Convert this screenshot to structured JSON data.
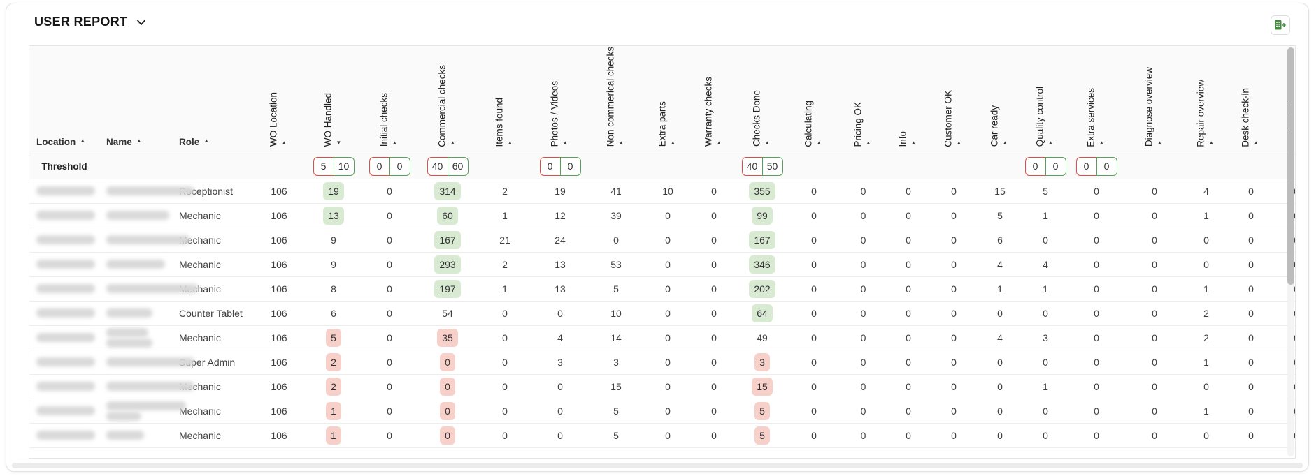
{
  "title": "USER REPORT",
  "export_button": {
    "icon": "excel-export-icon"
  },
  "colors": {
    "badge_green": "#d9ead3",
    "badge_red": "#f8d0ca",
    "threshold_red_border": "#dd5145",
    "threshold_green_border": "#55a157",
    "export_icon_green": "#44893f"
  },
  "table": {
    "threshold_label": "Threshold",
    "text_columns": [
      {
        "label": "Location",
        "sort": "asc"
      },
      {
        "label": "Name",
        "sort": "asc"
      },
      {
        "label": "Role",
        "sort": "asc"
      }
    ],
    "value_columns": [
      {
        "label": "WO Location",
        "sort": "asc",
        "threshold": null
      },
      {
        "label": "WO Handled",
        "sort": "desc",
        "threshold": {
          "red": "5",
          "green": "10"
        }
      },
      {
        "label": "Initial checks",
        "sort": "asc",
        "threshold": {
          "red": "0",
          "green": "0"
        }
      },
      {
        "label": "Commercial checks",
        "sort": "asc",
        "threshold": {
          "red": "40",
          "green": "60"
        }
      },
      {
        "label": "Items found",
        "sort": "asc",
        "threshold": null
      },
      {
        "label": "Photos / Videos",
        "sort": "asc",
        "threshold": {
          "red": "0",
          "green": "0"
        }
      },
      {
        "label": "Non commerical checks",
        "sort": "asc",
        "threshold": null
      },
      {
        "label": "Extra parts",
        "sort": "asc",
        "threshold": null
      },
      {
        "label": "Warranty checks",
        "sort": "asc",
        "threshold": null
      },
      {
        "label": "Checks Done",
        "sort": "asc",
        "threshold": {
          "red": "40",
          "green": "50"
        }
      },
      {
        "label": "Calculating",
        "sort": "asc",
        "threshold": null
      },
      {
        "label": "Pricing OK",
        "sort": "asc",
        "threshold": null
      },
      {
        "label": "Info",
        "sort": "asc",
        "threshold": null
      },
      {
        "label": "Customer OK",
        "sort": "asc",
        "threshold": null
      },
      {
        "label": "Car ready",
        "sort": "asc",
        "threshold": null
      },
      {
        "label": "Quality control",
        "sort": "asc",
        "threshold": {
          "red": "0",
          "green": "0"
        }
      },
      {
        "label": "Extra services",
        "sort": "asc",
        "threshold": {
          "red": "0",
          "green": "0"
        }
      },
      {
        "label": "Diagnose overview",
        "sort": "asc",
        "threshold": null
      },
      {
        "label": "Repair overview",
        "sort": "asc",
        "threshold": null
      },
      {
        "label": "Desk check-in",
        "sort": "asc",
        "threshold": null
      },
      {
        "label": "Desk check-out",
        "sort": "asc",
        "threshold": null
      }
    ],
    "rows": [
      {
        "location": "",
        "name": "",
        "role": "Receptionist",
        "values": [
          [
            "106"
          ],
          [
            "19",
            "g"
          ],
          [
            "0"
          ],
          [
            "314",
            "g"
          ],
          [
            "2"
          ],
          [
            "19"
          ],
          [
            "41"
          ],
          [
            "10"
          ],
          [
            "0"
          ],
          [
            "355",
            "g"
          ],
          [
            "0"
          ],
          [
            "0"
          ],
          [
            "0"
          ],
          [
            "0"
          ],
          [
            "15"
          ],
          [
            "5"
          ],
          [
            "0"
          ],
          [
            "0"
          ],
          [
            "4"
          ],
          [
            "0"
          ],
          [
            "0"
          ]
        ]
      },
      {
        "location": "",
        "name": "",
        "role": "Mechanic",
        "values": [
          [
            "106"
          ],
          [
            "13",
            "g"
          ],
          [
            "0"
          ],
          [
            "60",
            "g"
          ],
          [
            "1"
          ],
          [
            "12"
          ],
          [
            "39"
          ],
          [
            "0"
          ],
          [
            "0"
          ],
          [
            "99",
            "g"
          ],
          [
            "0"
          ],
          [
            "0"
          ],
          [
            "0"
          ],
          [
            "0"
          ],
          [
            "5"
          ],
          [
            "1"
          ],
          [
            "0"
          ],
          [
            "0"
          ],
          [
            "1"
          ],
          [
            "0"
          ],
          [
            "0"
          ]
        ]
      },
      {
        "location": "",
        "name": "",
        "role": "Mechanic",
        "values": [
          [
            "106"
          ],
          [
            "9"
          ],
          [
            "0"
          ],
          [
            "167",
            "g"
          ],
          [
            "21"
          ],
          [
            "24"
          ],
          [
            "0"
          ],
          [
            "0"
          ],
          [
            "0"
          ],
          [
            "167",
            "g"
          ],
          [
            "0"
          ],
          [
            "0"
          ],
          [
            "0"
          ],
          [
            "0"
          ],
          [
            "6"
          ],
          [
            "0"
          ],
          [
            "0"
          ],
          [
            "0"
          ],
          [
            "0"
          ],
          [
            "0"
          ],
          [
            "0"
          ]
        ]
      },
      {
        "location": "",
        "name": "",
        "role": "Mechanic",
        "values": [
          [
            "106"
          ],
          [
            "9"
          ],
          [
            "0"
          ],
          [
            "293",
            "g"
          ],
          [
            "2"
          ],
          [
            "13"
          ],
          [
            "53"
          ],
          [
            "0"
          ],
          [
            "0"
          ],
          [
            "346",
            "g"
          ],
          [
            "0"
          ],
          [
            "0"
          ],
          [
            "0"
          ],
          [
            "0"
          ],
          [
            "4"
          ],
          [
            "4"
          ],
          [
            "0"
          ],
          [
            "0"
          ],
          [
            "0"
          ],
          [
            "0"
          ],
          [
            "0"
          ]
        ]
      },
      {
        "location": "",
        "name": "",
        "role": "Mechanic",
        "values": [
          [
            "106"
          ],
          [
            "8"
          ],
          [
            "0"
          ],
          [
            "197",
            "g"
          ],
          [
            "1"
          ],
          [
            "13"
          ],
          [
            "5"
          ],
          [
            "0"
          ],
          [
            "0"
          ],
          [
            "202",
            "g"
          ],
          [
            "0"
          ],
          [
            "0"
          ],
          [
            "0"
          ],
          [
            "0"
          ],
          [
            "1"
          ],
          [
            "1"
          ],
          [
            "0"
          ],
          [
            "0"
          ],
          [
            "1"
          ],
          [
            "0"
          ],
          [
            "0"
          ]
        ]
      },
      {
        "location": "",
        "name": "",
        "role": "Counter Tablet",
        "values": [
          [
            "106"
          ],
          [
            "6"
          ],
          [
            "0"
          ],
          [
            "54"
          ],
          [
            "0"
          ],
          [
            "0"
          ],
          [
            "10"
          ],
          [
            "0"
          ],
          [
            "0"
          ],
          [
            "64",
            "g"
          ],
          [
            "0"
          ],
          [
            "0"
          ],
          [
            "0"
          ],
          [
            "0"
          ],
          [
            "0"
          ],
          [
            "0"
          ],
          [
            "0"
          ],
          [
            "0"
          ],
          [
            "2"
          ],
          [
            "0"
          ],
          [
            "0"
          ]
        ]
      },
      {
        "location": "",
        "name": "",
        "role": "Mechanic",
        "values": [
          [
            "106"
          ],
          [
            "5",
            "r"
          ],
          [
            "0"
          ],
          [
            "35",
            "r"
          ],
          [
            "0"
          ],
          [
            "4"
          ],
          [
            "14"
          ],
          [
            "0"
          ],
          [
            "0"
          ],
          [
            "49"
          ],
          [
            "0"
          ],
          [
            "0"
          ],
          [
            "0"
          ],
          [
            "0"
          ],
          [
            "4"
          ],
          [
            "3"
          ],
          [
            "0"
          ],
          [
            "0"
          ],
          [
            "2"
          ],
          [
            "0"
          ],
          [
            "0"
          ]
        ]
      },
      {
        "location": "",
        "name": "",
        "role": "Super Admin",
        "values": [
          [
            "106"
          ],
          [
            "2",
            "r"
          ],
          [
            "0"
          ],
          [
            "0",
            "r"
          ],
          [
            "0"
          ],
          [
            "3"
          ],
          [
            "3"
          ],
          [
            "0"
          ],
          [
            "0"
          ],
          [
            "3",
            "r"
          ],
          [
            "0"
          ],
          [
            "0"
          ],
          [
            "0"
          ],
          [
            "0"
          ],
          [
            "0"
          ],
          [
            "0"
          ],
          [
            "0"
          ],
          [
            "0"
          ],
          [
            "1"
          ],
          [
            "0"
          ],
          [
            "0"
          ]
        ]
      },
      {
        "location": "",
        "name": "",
        "role": "Mechanic",
        "values": [
          [
            "106"
          ],
          [
            "2",
            "r"
          ],
          [
            "0"
          ],
          [
            "0",
            "r"
          ],
          [
            "0"
          ],
          [
            "0"
          ],
          [
            "15"
          ],
          [
            "0"
          ],
          [
            "0"
          ],
          [
            "15",
            "r"
          ],
          [
            "0"
          ],
          [
            "0"
          ],
          [
            "0"
          ],
          [
            "0"
          ],
          [
            "0"
          ],
          [
            "1"
          ],
          [
            "0"
          ],
          [
            "0"
          ],
          [
            "0"
          ],
          [
            "0"
          ],
          [
            "0"
          ]
        ]
      },
      {
        "location": "",
        "name": "",
        "role": "Mechanic",
        "values": [
          [
            "106"
          ],
          [
            "1",
            "r"
          ],
          [
            "0"
          ],
          [
            "0",
            "r"
          ],
          [
            "0"
          ],
          [
            "0"
          ],
          [
            "5"
          ],
          [
            "0"
          ],
          [
            "0"
          ],
          [
            "5",
            "r"
          ],
          [
            "0"
          ],
          [
            "0"
          ],
          [
            "0"
          ],
          [
            "0"
          ],
          [
            "0"
          ],
          [
            "0"
          ],
          [
            "0"
          ],
          [
            "0"
          ],
          [
            "1"
          ],
          [
            "0"
          ],
          [
            "0"
          ]
        ]
      },
      {
        "location": "",
        "name": "",
        "role": "Mechanic",
        "values": [
          [
            "106"
          ],
          [
            "1",
            "r"
          ],
          [
            "0"
          ],
          [
            "0",
            "r"
          ],
          [
            "0"
          ],
          [
            "0"
          ],
          [
            "5"
          ],
          [
            "0"
          ],
          [
            "0"
          ],
          [
            "5",
            "r"
          ],
          [
            "0"
          ],
          [
            "0"
          ],
          [
            "0"
          ],
          [
            "0"
          ],
          [
            "0"
          ],
          [
            "0"
          ],
          [
            "0"
          ],
          [
            "0"
          ],
          [
            "0"
          ],
          [
            "0"
          ],
          [
            "0"
          ]
        ]
      }
    ]
  }
}
